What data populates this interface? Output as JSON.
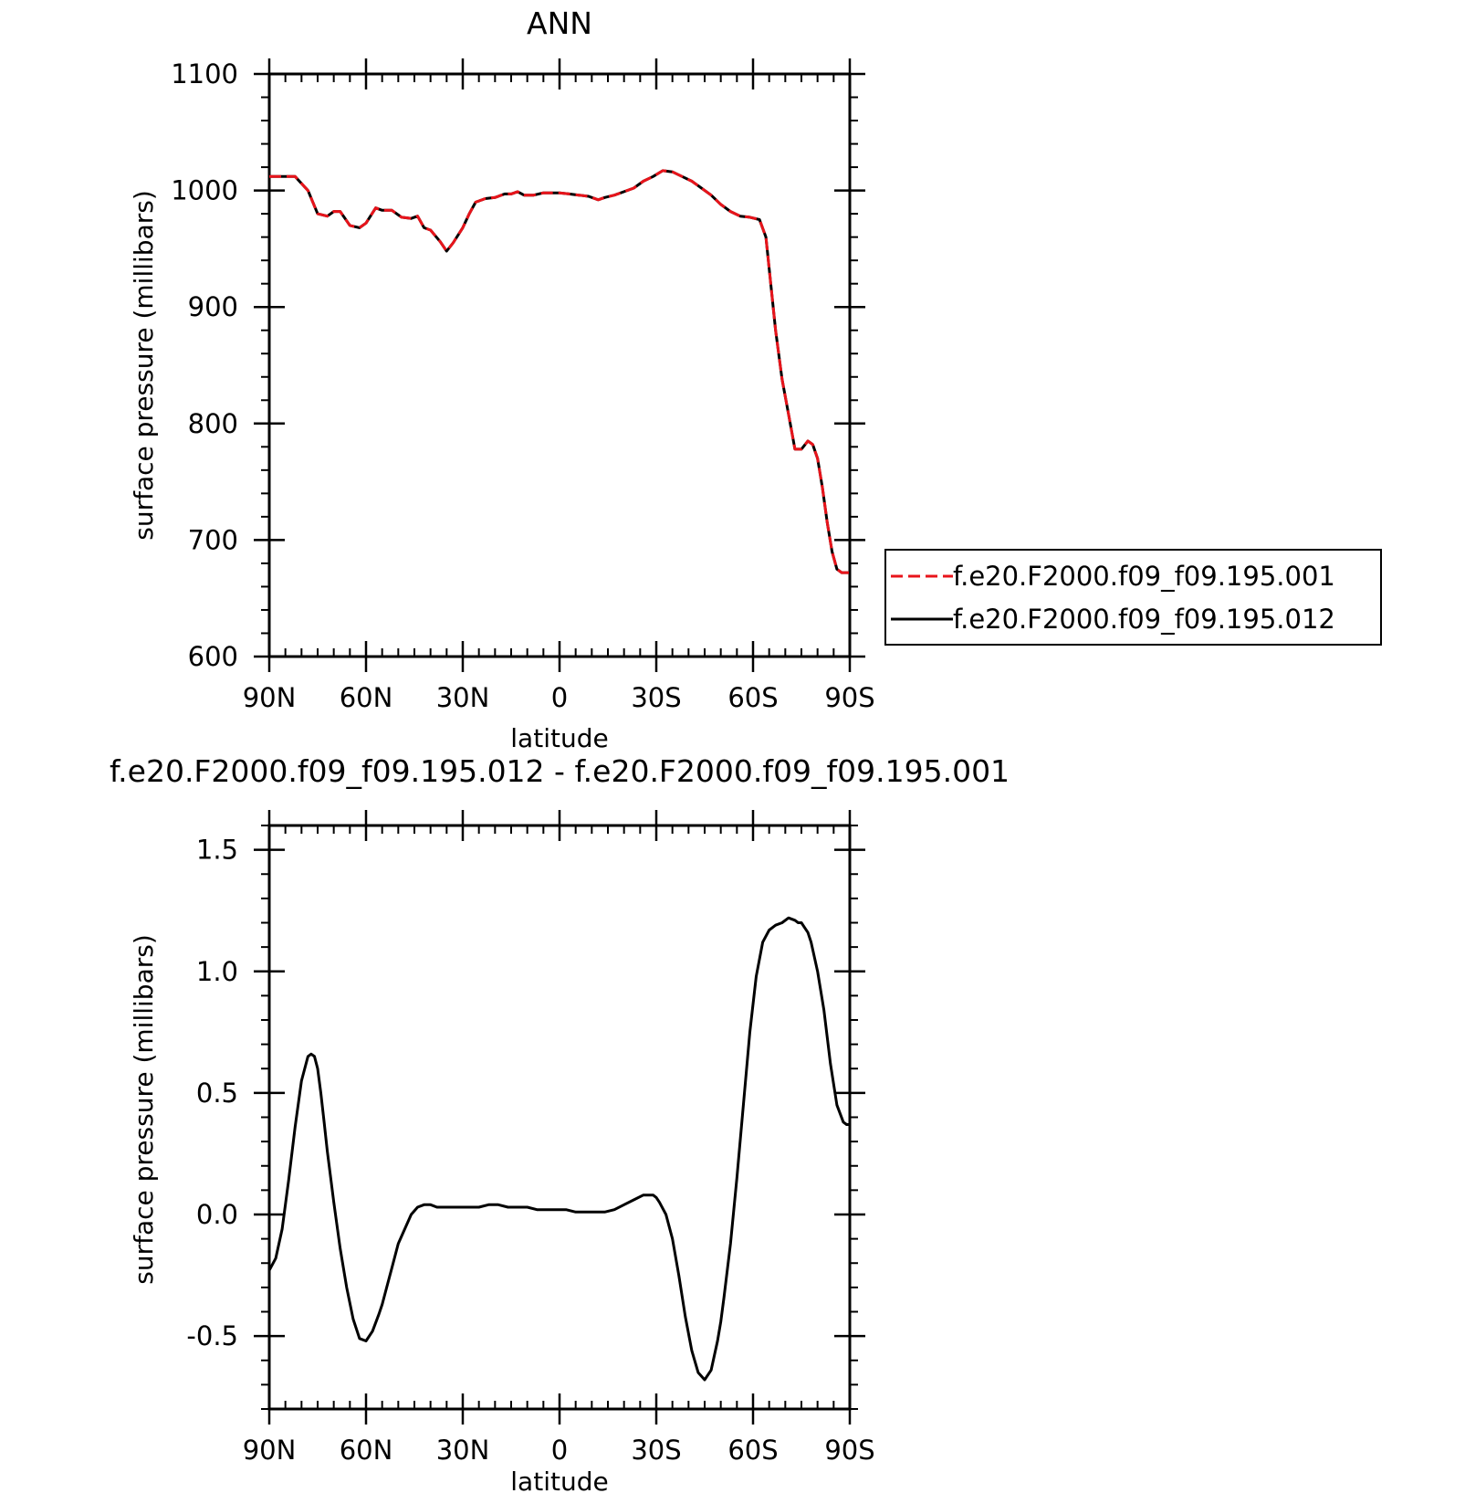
{
  "chart_data": [
    {
      "type": "line",
      "title": "ANN",
      "xlabel": "latitude",
      "ylabel": "surface pressure (millibars)",
      "xlim": [
        90,
        -90
      ],
      "ylim": [
        600,
        1100
      ],
      "x_ticks": [
        90,
        60,
        30,
        0,
        -30,
        -60,
        -90
      ],
      "x_tick_labels": [
        "90N",
        "60N",
        "30N",
        "0",
        "30S",
        "60S",
        "90S"
      ],
      "y_ticks": [
        600,
        700,
        800,
        900,
        1000,
        1100
      ],
      "y_tick_labels": [
        "600",
        "700",
        "800",
        "900",
        "1000",
        "1100"
      ],
      "legend_position": "right",
      "series": [
        {
          "name": "f.e20.F2000.f09_f09.195.001",
          "color": "#e8141b",
          "dash": "dashed",
          "x": [
            90,
            85,
            82,
            78,
            75,
            72,
            70,
            68,
            65,
            62,
            60,
            57,
            55,
            52,
            49,
            46,
            44,
            42,
            40,
            37,
            35,
            33,
            30,
            28,
            26,
            23,
            20,
            17,
            15,
            13,
            11,
            8,
            5,
            2,
            0,
            -3,
            -6,
            -9,
            -12,
            -14,
            -17,
            -20,
            -23,
            -26,
            -29,
            -32,
            -35,
            -38,
            -41,
            -44,
            -47,
            -50,
            -53,
            -56,
            -59,
            -62,
            -64,
            -65.5,
            -67,
            -69,
            -71,
            -73,
            -75,
            -77,
            -78.5,
            -80,
            -81.5,
            -83,
            -84.5,
            -86,
            -87.5,
            -89,
            -90
          ],
          "values": [
            1012,
            1012,
            1012,
            1000,
            980,
            978,
            982,
            982,
            970,
            968,
            972,
            985,
            983,
            983,
            977,
            976,
            978,
            968,
            966,
            956,
            948,
            955,
            968,
            980,
            990,
            993,
            994,
            997,
            997,
            999,
            996,
            996,
            998,
            998,
            998,
            997,
            996,
            995,
            992,
            994,
            996,
            999,
            1002,
            1008,
            1012,
            1017,
            1016,
            1012,
            1008,
            1002,
            996,
            988,
            982,
            978,
            977,
            975,
            960,
            920,
            880,
            838,
            808,
            778,
            778,
            785,
            782,
            770,
            745,
            715,
            690,
            675,
            672,
            672,
            672
          ]
        },
        {
          "name": "f.e20.F2000.f09_f09.195.012",
          "color": "#000000",
          "dash": "solid",
          "x": [
            90,
            85,
            82,
            78,
            75,
            72,
            70,
            68,
            65,
            62,
            60,
            57,
            55,
            52,
            49,
            46,
            44,
            42,
            40,
            37,
            35,
            33,
            30,
            28,
            26,
            23,
            20,
            17,
            15,
            13,
            11,
            8,
            5,
            2,
            0,
            -3,
            -6,
            -9,
            -12,
            -14,
            -17,
            -20,
            -23,
            -26,
            -29,
            -32,
            -35,
            -38,
            -41,
            -44,
            -47,
            -50,
            -53,
            -56,
            -59,
            -62,
            -64,
            -65.5,
            -67,
            -69,
            -71,
            -73,
            -75,
            -77,
            -78.5,
            -80,
            -81.5,
            -83,
            -84.5,
            -86,
            -87.5,
            -89,
            -90
          ],
          "values": [
            1012,
            1012,
            1012,
            1000,
            980,
            978,
            982,
            982,
            970,
            968,
            972,
            985,
            983,
            983,
            977,
            976,
            978,
            968,
            966,
            956,
            948,
            955,
            968,
            980,
            990,
            993,
            994,
            997,
            997,
            999,
            996,
            996,
            998,
            998,
            998,
            997,
            996,
            995,
            992,
            994,
            996,
            999,
            1002,
            1008,
            1012,
            1017,
            1016,
            1012,
            1008,
            1002,
            996,
            988,
            982,
            978,
            977,
            975,
            960,
            920,
            880,
            838,
            808,
            778,
            778,
            785,
            782,
            770,
            745,
            715,
            690,
            675,
            672,
            672,
            672
          ]
        }
      ]
    },
    {
      "type": "line",
      "title": "f.e20.F2000.f09_f09.195.012 - f.e20.F2000.f09_f09.195.001",
      "xlabel": "latitude",
      "ylabel": "surface pressure (millibars)",
      "xlim": [
        90,
        -90
      ],
      "ylim": [
        -0.8,
        1.6
      ],
      "x_ticks": [
        90,
        60,
        30,
        0,
        -30,
        -60,
        -90
      ],
      "x_tick_labels": [
        "90N",
        "60N",
        "30N",
        "0",
        "30S",
        "60S",
        "90S"
      ],
      "y_ticks": [
        -0.5,
        0.0,
        0.5,
        1.0,
        1.5
      ],
      "y_tick_labels": [
        "-0.5",
        "0.0",
        "0.5",
        "1.0",
        "1.5"
      ],
      "series": [
        {
          "color": "#000000",
          "dash": "solid",
          "x": [
            90,
            88,
            86,
            84,
            82,
            80,
            78,
            77,
            76,
            75,
            74,
            73,
            72,
            70,
            68,
            66,
            64,
            62,
            60,
            58,
            56,
            55,
            54,
            52,
            50,
            48,
            46,
            44,
            42,
            40,
            38,
            36,
            35,
            34,
            33,
            31,
            28,
            25,
            22,
            19,
            16,
            13,
            10,
            7,
            4,
            1,
            -2,
            -5,
            -8,
            -11,
            -14,
            -17,
            -20,
            -23,
            -26,
            -28,
            -29,
            -30,
            -31,
            -33,
            -35,
            -37,
            -39,
            -41,
            -43,
            -45,
            -47,
            -49,
            -50,
            -51,
            -53,
            -55,
            -57,
            -59,
            -61,
            -63,
            -65,
            -67,
            -69,
            -71,
            -73,
            -74,
            -75,
            -76,
            -77,
            -78,
            -80,
            -82,
            -84,
            -86,
            -88,
            -89,
            -90
          ],
          "values": [
            -0.23,
            -0.18,
            -0.06,
            0.14,
            0.36,
            0.55,
            0.65,
            0.66,
            0.65,
            0.6,
            0.5,
            0.38,
            0.26,
            0.05,
            -0.14,
            -0.3,
            -0.43,
            -0.51,
            -0.52,
            -0.48,
            -0.41,
            -0.37,
            -0.32,
            -0.22,
            -0.12,
            -0.06,
            0.0,
            0.03,
            0.04,
            0.04,
            0.03,
            0.03,
            0.03,
            0.03,
            0.03,
            0.03,
            0.03,
            0.03,
            0.04,
            0.04,
            0.03,
            0.03,
            0.03,
            0.02,
            0.02,
            0.02,
            0.02,
            0.01,
            0.01,
            0.01,
            0.01,
            0.02,
            0.04,
            0.06,
            0.08,
            0.08,
            0.08,
            0.07,
            0.05,
            0.0,
            -0.1,
            -0.25,
            -0.42,
            -0.56,
            -0.65,
            -0.68,
            -0.64,
            -0.52,
            -0.44,
            -0.34,
            -0.12,
            0.15,
            0.45,
            0.75,
            0.98,
            1.12,
            1.17,
            1.19,
            1.2,
            1.22,
            1.21,
            1.2,
            1.2,
            1.18,
            1.16,
            1.12,
            1.0,
            0.84,
            0.62,
            0.45,
            0.38,
            0.37,
            0.37
          ]
        }
      ]
    }
  ]
}
